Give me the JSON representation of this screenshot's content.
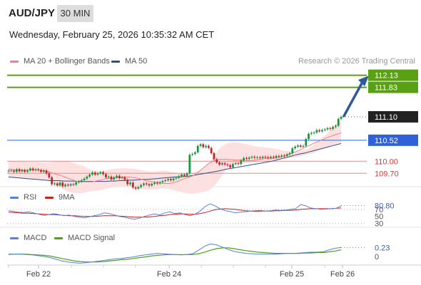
{
  "header": {
    "symbol": "AUD/JPY",
    "timeframe": "30 MIN",
    "datetime": "Wednesday, February 25, 2026 10:35:32 AM CET"
  },
  "legend": {
    "ma20_label": "MA 20 + Bollinger Bands",
    "ma50_label": "MA 50",
    "credit": "Research © 2026 Trading Central"
  },
  "colors": {
    "ma20": "#f08080",
    "ma50": "#2c4f8c",
    "band_fill": "#fde0e0",
    "resistance": "#5aa013",
    "pivot": "#2f62d8",
    "support": "#ee8888",
    "candle_up": "#1a9641",
    "candle_down": "#c0282f",
    "rsi": "#5b7fd6",
    "rsi_ma": "#cc1f1f",
    "macd": "#5b7fd6",
    "macd_signal": "#4aa21c",
    "arrow": "#2e5a9c"
  },
  "chart_data": [
    {
      "type": "candlestick",
      "panel": "price",
      "ylim": [
        109.37,
        112.37
      ],
      "x_ticks": [
        "Feb 22",
        "Feb 24",
        "Feb 25",
        "Feb 26"
      ],
      "levels": [
        {
          "value": 112.13,
          "label": "112.13",
          "kind": "resistance"
        },
        {
          "value": 111.83,
          "label": "111.83",
          "kind": "resistance"
        },
        {
          "value": 111.1,
          "label": "111.10",
          "kind": "last"
        },
        {
          "value": 110.52,
          "label": "110.52",
          "kind": "pivot"
        },
        {
          "value": 110.0,
          "label": "110.00",
          "kind": "support"
        },
        {
          "value": 109.7,
          "label": "109.70",
          "kind": "support"
        }
      ],
      "close": [
        109.77,
        109.77,
        109.74,
        109.8,
        109.75,
        109.78,
        109.74,
        109.77,
        109.82,
        109.78,
        109.8,
        109.78,
        109.74,
        109.77,
        109.7,
        109.6,
        109.43,
        109.45,
        109.4,
        109.47,
        109.38,
        109.42,
        109.4,
        109.43,
        109.42,
        109.48,
        109.5,
        109.53,
        109.57,
        109.62,
        109.67,
        109.72,
        109.67,
        109.7,
        109.73,
        109.68,
        109.6,
        109.62,
        109.55,
        109.6,
        109.64,
        109.58,
        109.6,
        109.54,
        109.43,
        109.47,
        109.35,
        109.32,
        109.36,
        109.41,
        109.45,
        109.43,
        109.4,
        109.44,
        109.47,
        109.45,
        109.48,
        109.51,
        109.53,
        109.56,
        109.53,
        109.57,
        109.59,
        109.63,
        109.67,
        109.64,
        109.7,
        110.16,
        110.18,
        110.22,
        110.38,
        110.42,
        110.35,
        110.38,
        110.33,
        110.2,
        110.05,
        109.97,
        109.92,
        109.95,
        109.92,
        109.9,
        109.85,
        109.93,
        109.95,
        109.93,
        110.02,
        110.08,
        110.06,
        110.09,
        110.11,
        110.09,
        110.1,
        110.08,
        110.11,
        110.1,
        110.08,
        110.11,
        110.09,
        110.13,
        110.12,
        110.14,
        110.13,
        110.17,
        110.2,
        110.32,
        110.36,
        110.39,
        110.36,
        110.38,
        110.55,
        110.68,
        110.7,
        110.71,
        110.77,
        110.74,
        110.77,
        110.79,
        110.82,
        110.8,
        110.85,
        110.88,
        111.05,
        111.1
      ],
      "ma20": [
        109.8,
        109.8,
        109.79,
        109.79,
        109.79,
        109.78,
        109.78,
        109.78,
        109.78,
        109.78,
        109.78,
        109.78,
        109.77,
        109.76,
        109.74,
        109.72,
        109.69,
        109.67,
        109.65,
        109.63,
        109.6,
        109.57,
        109.55,
        109.52,
        109.5,
        109.49,
        109.49,
        109.49,
        109.49,
        109.49,
        109.5,
        109.52,
        109.53,
        109.55,
        109.57,
        109.57,
        109.58,
        109.59,
        109.59,
        109.6,
        109.61,
        109.61,
        109.61,
        109.6,
        109.59,
        109.58,
        109.56,
        109.54,
        109.52,
        109.51,
        109.5,
        109.48,
        109.47,
        109.46,
        109.45,
        109.45,
        109.45,
        109.46,
        109.48,
        109.5,
        109.53,
        109.56,
        109.58,
        109.61,
        109.63,
        109.67,
        109.72,
        109.78,
        109.84,
        109.9,
        109.95,
        109.99,
        110.02,
        110.04,
        110.05,
        110.05,
        110.05,
        110.04,
        110.04,
        110.03,
        110.03,
        110.03,
        110.02,
        110.02,
        110.02,
        110.02,
        110.03,
        110.04,
        110.05,
        110.06,
        110.07,
        110.07,
        110.07,
        110.08,
        110.09,
        110.11,
        110.13,
        110.15,
        110.18,
        110.2,
        110.23,
        110.26,
        110.29,
        110.33,
        110.36,
        110.39,
        110.43,
        110.46,
        110.49,
        110.52,
        110.55,
        110.58,
        110.61,
        110.63,
        110.66,
        110.68,
        110.7
      ],
      "bb_upper": [
        110.0,
        110.0,
        110.0,
        109.99,
        109.99,
        109.98,
        109.98,
        109.98,
        109.97,
        109.96,
        109.96,
        109.97,
        109.98,
        110.0,
        110.0,
        110.0,
        109.99,
        109.96,
        109.93,
        109.9,
        109.88,
        109.82,
        109.79,
        109.77,
        109.74,
        109.75,
        109.78,
        109.8,
        109.81,
        109.82,
        109.83,
        109.83,
        109.82,
        109.81,
        109.8,
        109.78,
        109.76,
        109.75,
        109.75,
        109.75,
        109.76,
        109.77,
        109.76,
        109.74,
        109.72,
        109.7,
        109.69,
        109.69,
        109.7,
        109.73,
        109.76,
        109.8,
        109.86,
        109.95,
        110.08,
        110.22,
        110.33,
        110.4,
        110.45,
        110.47,
        110.47,
        110.46,
        110.44,
        110.42,
        110.4,
        110.38,
        110.36,
        110.35,
        110.34,
        110.33,
        110.32,
        110.3,
        110.28,
        110.26,
        110.25,
        110.24,
        110.24,
        110.25,
        110.27,
        110.3,
        110.35,
        110.42,
        110.5,
        110.58,
        110.66,
        110.75,
        110.85,
        110.95,
        111.0
      ],
      "bb_lower": [
        109.6,
        109.6,
        109.58,
        109.58,
        109.57,
        109.57,
        109.56,
        109.56,
        109.55,
        109.55,
        109.53,
        109.5,
        109.46,
        109.4,
        109.34,
        109.28,
        109.24,
        109.22,
        109.21,
        109.21,
        109.22,
        109.24,
        109.26,
        109.27,
        109.28,
        109.3,
        109.32,
        109.35,
        109.37,
        109.38,
        109.38,
        109.37,
        109.36,
        109.35,
        109.33,
        109.32,
        109.31,
        109.3,
        109.3,
        109.31,
        109.32,
        109.33,
        109.32,
        109.3,
        109.28,
        109.25,
        109.23,
        109.21,
        109.2,
        109.2,
        109.21,
        109.23,
        109.25,
        109.28,
        109.35,
        109.45,
        109.58,
        109.72,
        109.82,
        109.88,
        109.92,
        109.94,
        109.95,
        109.96,
        109.97,
        109.98,
        109.99,
        110.0,
        110.01,
        110.02,
        110.03,
        110.04,
        110.05,
        110.06,
        110.07,
        110.09,
        110.1,
        110.12,
        110.14,
        110.16,
        110.18,
        110.21,
        110.25,
        110.28,
        110.32,
        110.36,
        110.4,
        110.44,
        110.47
      ],
      "ma50": [
        109.61,
        109.6,
        109.59,
        109.58,
        109.57,
        109.56,
        109.55,
        109.54,
        109.53,
        109.52,
        109.52,
        109.52,
        109.51,
        109.51,
        109.51,
        109.5,
        109.5,
        109.5,
        109.5,
        109.5,
        109.5,
        109.5,
        109.51,
        109.51,
        109.52,
        109.52,
        109.53,
        109.53,
        109.54,
        109.55,
        109.55,
        109.56,
        109.57,
        109.58,
        109.59,
        109.6,
        109.61,
        109.61,
        109.62,
        109.63,
        109.65,
        109.67,
        109.69,
        109.71,
        109.73,
        109.75,
        109.77,
        109.8,
        109.82,
        109.84,
        109.86,
        109.88,
        109.9,
        109.92,
        109.94,
        109.96,
        109.98,
        110.0,
        110.03,
        110.06,
        110.09,
        110.12,
        110.15,
        110.18,
        110.2,
        110.23,
        110.26,
        110.29,
        110.32,
        110.35,
        110.38,
        110.41,
        110.44
      ]
    },
    {
      "type": "line",
      "panel": "rsi",
      "levels": [
        {
          "value": 80.8,
          "label": "80.80"
        },
        {
          "value": 70,
          "label": "70"
        },
        {
          "value": 50,
          "label": "50"
        },
        {
          "value": 30,
          "label": "30"
        }
      ],
      "series": [
        {
          "name": "RSI",
          "values": [
            66,
            64,
            62,
            61,
            63,
            60,
            56,
            53,
            55,
            58,
            55,
            52,
            54,
            50,
            48,
            46,
            49,
            52,
            55,
            60,
            58,
            54,
            50,
            48,
            44,
            42,
            45,
            50,
            54,
            57,
            54,
            60,
            63,
            58,
            60,
            55,
            52,
            56,
            65,
            78,
            86,
            80,
            72,
            66,
            64,
            60,
            62,
            63,
            65,
            66,
            67,
            65,
            66,
            68,
            67,
            68,
            70,
            72,
            84,
            80,
            74,
            72,
            70,
            71,
            72,
            73,
            80
          ]
        },
        {
          "name": "9MA",
          "values": [
            62,
            61,
            60,
            59,
            59,
            58,
            57,
            56,
            55,
            55,
            54,
            53,
            52,
            52,
            51,
            50,
            50,
            50,
            51,
            52,
            52,
            52,
            51,
            50,
            49,
            48,
            48,
            48,
            49,
            50,
            52,
            53,
            55,
            56,
            57,
            57,
            56,
            56,
            58,
            61,
            65,
            69,
            71,
            72,
            71,
            70,
            68,
            66,
            65,
            64,
            65,
            65,
            65,
            66,
            66,
            67,
            67,
            68,
            70,
            71,
            72,
            72,
            72,
            72,
            72,
            73,
            74
          ]
        }
      ]
    },
    {
      "type": "line",
      "panel": "macd",
      "levels": [
        {
          "value": 0.23,
          "label": "0.23"
        },
        {
          "value": 0,
          "label": "0"
        }
      ],
      "series": [
        {
          "name": "MACD",
          "values": [
            0.05,
            0.06,
            0.06,
            0.05,
            0.04,
            0.02,
            0.0,
            -0.03,
            -0.07,
            -0.11,
            -0.14,
            -0.16,
            -0.17,
            -0.16,
            -0.14,
            -0.12,
            -0.1,
            -0.08,
            -0.06,
            -0.05,
            -0.03,
            -0.01,
            0.02,
            0.04,
            0.06,
            0.08,
            0.07,
            0.06,
            0.05,
            0.04,
            0.05,
            0.07,
            0.16,
            0.26,
            0.32,
            0.3,
            0.24,
            0.18,
            0.13,
            0.1,
            0.08,
            0.07,
            0.06,
            0.06,
            0.06,
            0.06,
            0.07,
            0.08,
            0.08,
            0.09,
            0.1,
            0.11,
            0.11,
            0.12,
            0.17,
            0.21,
            0.23
          ]
        },
        {
          "name": "MACD Signal",
          "values": [
            0.06,
            0.06,
            0.06,
            0.06,
            0.05,
            0.04,
            0.03,
            0.01,
            -0.02,
            -0.05,
            -0.08,
            -0.11,
            -0.13,
            -0.14,
            -0.14,
            -0.14,
            -0.13,
            -0.11,
            -0.1,
            -0.08,
            -0.07,
            -0.05,
            -0.03,
            -0.01,
            0.01,
            0.03,
            0.04,
            0.05,
            0.05,
            0.05,
            0.05,
            0.05,
            0.07,
            0.11,
            0.16,
            0.2,
            0.22,
            0.22,
            0.2,
            0.17,
            0.15,
            0.13,
            0.11,
            0.1,
            0.09,
            0.08,
            0.08,
            0.08,
            0.08,
            0.08,
            0.09,
            0.09,
            0.1,
            0.1,
            0.12,
            0.14,
            0.17
          ]
        }
      ]
    }
  ],
  "panels": {
    "rsi_legend": {
      "rsi_label": "RSI",
      "ma_label": "9MA"
    },
    "macd_legend": {
      "macd_label": "MACD",
      "signal_label": "MACD Signal"
    }
  }
}
